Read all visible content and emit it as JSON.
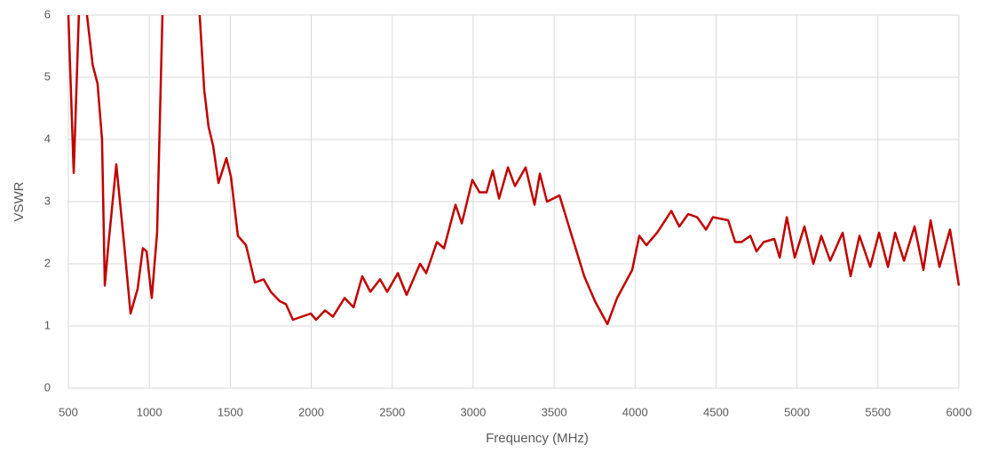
{
  "chart_data": {
    "type": "line",
    "x_label": "Frequency (MHz)",
    "y_label": "VSWR",
    "x": [
      500,
      533,
      571,
      615,
      650,
      680,
      708,
      725,
      747,
      796,
      845,
      884,
      928,
      960,
      983,
      1015,
      1048,
      1081,
      1150,
      1250,
      1311,
      1339,
      1366,
      1394,
      1427,
      1476,
      1504,
      1547,
      1597,
      1652,
      1706,
      1750,
      1805,
      1844,
      1887,
      1942,
      1997,
      2030,
      2085,
      2134,
      2206,
      2261,
      2315,
      2365,
      2425,
      2469,
      2535,
      2589,
      2672,
      2710,
      2776,
      2820,
      2891,
      2930,
      2995,
      3039,
      3083,
      3121,
      3160,
      3215,
      3258,
      3324,
      3379,
      3412,
      3456,
      3533,
      3615,
      3686,
      3752,
      3829,
      3889,
      3982,
      4026,
      4070,
      4136,
      4224,
      4273,
      4328,
      4383,
      4438,
      4481,
      4575,
      4618,
      4657,
      4712,
      4750,
      4794,
      4860,
      4893,
      4937,
      4986,
      5046,
      5101,
      5150,
      5205,
      5282,
      5331,
      5386,
      5452,
      5507,
      5562,
      5606,
      5661,
      5726,
      5781,
      5825,
      5880,
      5945,
      6000
    ],
    "series": [
      {
        "name": "VSWR",
        "color": "#c00000",
        "values": [
          6,
          3.46,
          6.5,
          6,
          5.2,
          4.9,
          4.0,
          1.65,
          2.3,
          3.6,
          2.3,
          1.2,
          1.6,
          2.25,
          2.2,
          1.45,
          2.5,
          6,
          7,
          7,
          6,
          4.8,
          4.2,
          3.9,
          3.3,
          3.7,
          3.4,
          2.45,
          2.3,
          1.7,
          1.75,
          1.55,
          1.4,
          1.35,
          1.1,
          1.15,
          1.2,
          1.1,
          1.25,
          1.15,
          1.45,
          1.3,
          1.8,
          1.55,
          1.75,
          1.55,
          1.85,
          1.5,
          2.0,
          1.85,
          2.35,
          2.25,
          2.95,
          2.65,
          3.35,
          3.15,
          3.15,
          3.5,
          3.05,
          3.55,
          3.25,
          3.55,
          2.95,
          3.45,
          3.0,
          3.1,
          2.4,
          1.8,
          1.4,
          1.03,
          1.45,
          1.9,
          2.45,
          2.3,
          2.5,
          2.85,
          2.6,
          2.8,
          2.75,
          2.55,
          2.75,
          2.7,
          2.35,
          2.35,
          2.45,
          2.2,
          2.35,
          2.4,
          2.1,
          2.75,
          2.1,
          2.6,
          2.0,
          2.45,
          2.05,
          2.5,
          1.8,
          2.45,
          1.95,
          2.5,
          1.95,
          2.5,
          2.05,
          2.6,
          1.9,
          2.7,
          1.95,
          2.55,
          1.65
        ]
      }
    ],
    "xlim": [
      500,
      6000
    ],
    "xticks": [
      500,
      1000,
      1500,
      2000,
      2500,
      3000,
      3500,
      4000,
      4500,
      5000,
      5500,
      6000
    ],
    "ylim": [
      0,
      6
    ],
    "yticks": [
      0,
      1,
      2,
      3,
      4,
      5,
      6
    ],
    "grid": true
  }
}
